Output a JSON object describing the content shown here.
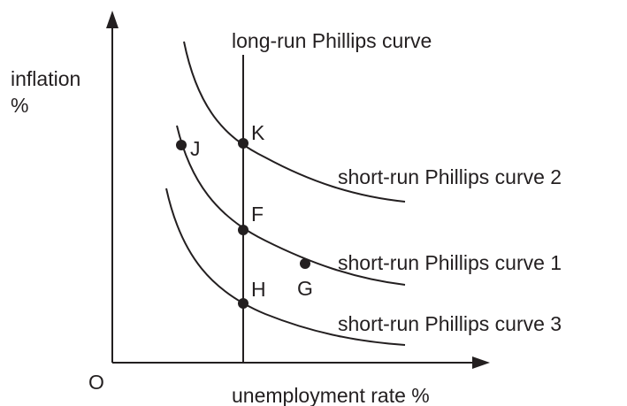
{
  "axes": {
    "y_label_line1": "inflation",
    "y_label_line2": "%",
    "x_label": "unemployment rate %",
    "origin": "O"
  },
  "curves": {
    "long_run": "long-run Phillips curve",
    "short_run_2": "short-run Phillips curve 2",
    "short_run_1": "short-run Phillips curve 1",
    "short_run_3": "short-run Phillips curve 3"
  },
  "points": {
    "K": "K",
    "J": "J",
    "F": "F",
    "G": "G",
    "H": "H"
  }
}
